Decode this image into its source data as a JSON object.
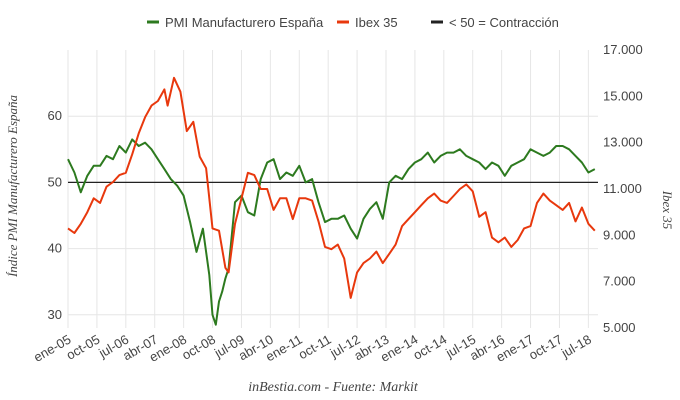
{
  "chart_data": {
    "type": "line",
    "title": "",
    "source": "inBestia.com - Fuente: Markit",
    "y_left_label": "Índice PMI Manufacturero España",
    "y_right_label": "Ibex 35",
    "y_left_range": [
      28,
      70
    ],
    "y_left_ticks": [
      "30",
      "40",
      "50",
      "60"
    ],
    "y_left_tick_values": [
      30,
      40,
      50,
      60
    ],
    "y_right_range": [
      5000,
      17000
    ],
    "y_right_ticks": [
      "5.000",
      "7.000",
      "9.000",
      "11.000",
      "13.000",
      "15.000",
      "17.000"
    ],
    "y_right_tick_values": [
      5000,
      7000,
      9000,
      11000,
      13000,
      15000,
      17000
    ],
    "x_ticks": [
      "ene-05",
      "oct-05",
      "jul-06",
      "abr-07",
      "ene-08",
      "oct-08",
      "jul-09",
      "abr-10",
      "ene-11",
      "oct-11",
      "jul-12",
      "abr-13",
      "ene-14",
      "oct-14",
      "jul-15",
      "abr-16",
      "ene-17",
      "oct-17",
      "jul-18"
    ],
    "legend": {
      "placement": "top",
      "entries": [
        {
          "name": "PMI Manufacturero España",
          "color": "#2d7a1f"
        },
        {
          "name": "Ibex 35",
          "color": "#e8380d"
        },
        {
          "name": "< 50 = Contracción",
          "color": "#222222"
        }
      ]
    },
    "reference_line": {
      "axis": "left",
      "value": 50
    },
    "grid": true,
    "series": [
      {
        "name": "PMI Manufacturero España",
        "axis": "left",
        "color": "#2d7a1f",
        "x": [
          "2005-01",
          "2005-03",
          "2005-05",
          "2005-07",
          "2005-09",
          "2005-11",
          "2006-01",
          "2006-03",
          "2006-05",
          "2006-07",
          "2006-09",
          "2006-11",
          "2007-01",
          "2007-03",
          "2007-05",
          "2007-07",
          "2007-09",
          "2007-11",
          "2008-01",
          "2008-03",
          "2008-05",
          "2008-07",
          "2008-09",
          "2008-10",
          "2008-11",
          "2008-12",
          "2009-01",
          "2009-02",
          "2009-03",
          "2009-05",
          "2009-07",
          "2009-09",
          "2009-11",
          "2010-01",
          "2010-03",
          "2010-05",
          "2010-07",
          "2010-09",
          "2010-11",
          "2011-01",
          "2011-03",
          "2011-05",
          "2011-07",
          "2011-09",
          "2011-11",
          "2012-01",
          "2012-03",
          "2012-05",
          "2012-07",
          "2012-09",
          "2012-11",
          "2013-01",
          "2013-03",
          "2013-05",
          "2013-07",
          "2013-09",
          "2013-11",
          "2014-01",
          "2014-03",
          "2014-05",
          "2014-07",
          "2014-09",
          "2014-11",
          "2015-01",
          "2015-03",
          "2015-05",
          "2015-07",
          "2015-09",
          "2015-11",
          "2016-01",
          "2016-03",
          "2016-05",
          "2016-07",
          "2016-09",
          "2016-11",
          "2017-01",
          "2017-03",
          "2017-05",
          "2017-07",
          "2017-09",
          "2017-11",
          "2018-01",
          "2018-03",
          "2018-05",
          "2018-07",
          "2018-09"
        ],
        "values": [
          53.5,
          51.5,
          48.5,
          51.0,
          52.5,
          52.5,
          54.0,
          53.5,
          55.5,
          54.5,
          56.5,
          55.5,
          56.0,
          55.0,
          53.5,
          52.0,
          50.5,
          49.5,
          48.0,
          44.0,
          39.5,
          43.0,
          36.0,
          30.0,
          28.5,
          32.0,
          33.5,
          35.5,
          37.0,
          47.0,
          48.0,
          45.5,
          45.0,
          50.5,
          53.0,
          53.5,
          50.5,
          51.5,
          51.0,
          52.5,
          50.0,
          50.5,
          47.0,
          44.0,
          44.5,
          44.5,
          45.0,
          43.0,
          41.5,
          44.5,
          46.0,
          47.0,
          44.5,
          50.0,
          51.0,
          50.5,
          52.0,
          53.0,
          53.5,
          54.5,
          53.0,
          54.0,
          54.5,
          54.5,
          55.0,
          54.0,
          53.5,
          53.0,
          52.0,
          53.0,
          52.5,
          51.0,
          52.5,
          53.0,
          53.5,
          55.0,
          54.5,
          54.0,
          54.5,
          55.5,
          55.5,
          55.0,
          54.0,
          53.0,
          51.5,
          52.0
        ]
      },
      {
        "name": "Ibex 35",
        "axis": "right",
        "color": "#e8380d",
        "x": [
          "2005-01",
          "2005-03",
          "2005-05",
          "2005-07",
          "2005-09",
          "2005-11",
          "2006-01",
          "2006-03",
          "2006-05",
          "2006-07",
          "2006-09",
          "2006-11",
          "2007-01",
          "2007-03",
          "2007-05",
          "2007-07",
          "2007-08",
          "2007-10",
          "2007-12",
          "2008-02",
          "2008-04",
          "2008-06",
          "2008-08",
          "2008-10",
          "2008-12",
          "2009-02",
          "2009-03",
          "2009-05",
          "2009-07",
          "2009-09",
          "2009-11",
          "2010-01",
          "2010-03",
          "2010-05",
          "2010-07",
          "2010-09",
          "2010-11",
          "2011-01",
          "2011-03",
          "2011-05",
          "2011-07",
          "2011-09",
          "2011-11",
          "2012-01",
          "2012-03",
          "2012-05",
          "2012-07",
          "2012-09",
          "2012-11",
          "2013-01",
          "2013-03",
          "2013-05",
          "2013-07",
          "2013-09",
          "2013-11",
          "2014-01",
          "2014-03",
          "2014-05",
          "2014-07",
          "2014-09",
          "2014-11",
          "2015-01",
          "2015-03",
          "2015-05",
          "2015-07",
          "2015-09",
          "2015-11",
          "2016-01",
          "2016-03",
          "2016-05",
          "2016-07",
          "2016-09",
          "2016-11",
          "2017-01",
          "2017-03",
          "2017-05",
          "2017-07",
          "2017-09",
          "2017-11",
          "2018-01",
          "2018-03",
          "2018-05",
          "2018-07",
          "2018-09"
        ],
        "values": [
          9.3,
          9.1,
          9.5,
          10.0,
          10.6,
          10.4,
          11.1,
          11.3,
          11.6,
          11.7,
          12.5,
          13.4,
          14.1,
          14.6,
          14.8,
          15.3,
          14.6,
          15.8,
          15.2,
          13.5,
          13.9,
          12.4,
          11.9,
          9.3,
          9.2,
          7.6,
          7.4,
          9.5,
          10.6,
          11.7,
          11.6,
          11.0,
          11.0,
          10.1,
          10.6,
          10.6,
          9.7,
          10.6,
          10.6,
          10.5,
          9.6,
          8.5,
          8.4,
          8.6,
          8.0,
          6.3,
          7.4,
          7.8,
          8.0,
          8.3,
          7.8,
          8.2,
          8.6,
          9.4,
          9.7,
          10.0,
          10.3,
          10.6,
          10.8,
          10.5,
          10.4,
          10.7,
          11.0,
          11.2,
          10.9,
          9.8,
          10.0,
          8.9,
          8.7,
          8.9,
          8.5,
          8.8,
          9.3,
          9.4,
          10.4,
          10.8,
          10.5,
          10.3,
          10.1,
          10.4,
          9.6,
          10.2,
          9.5,
          9.2
        ]
      }
    ]
  }
}
